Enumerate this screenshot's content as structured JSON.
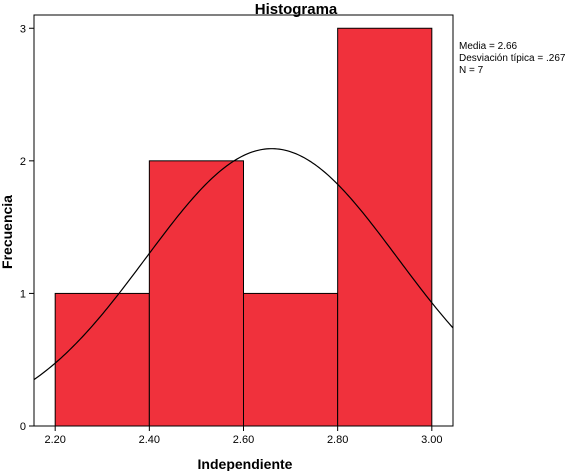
{
  "chart_data": {
    "type": "bar",
    "title": "Histograma",
    "xlabel": "Independiente",
    "ylabel": "Frecuencia",
    "bins": [
      {
        "from": 2.2,
        "to": 2.4,
        "count": 1
      },
      {
        "from": 2.4,
        "to": 2.6,
        "count": 2
      },
      {
        "from": 2.6,
        "to": 2.8,
        "count": 1
      },
      {
        "from": 2.8,
        "to": 3.0,
        "count": 3
      }
    ],
    "xticks": [
      "2.20",
      "2.40",
      "2.60",
      "2.80",
      "3.00"
    ],
    "yticks": [
      "0",
      "1",
      "2",
      "3"
    ],
    "xlim": [
      2.155,
      3.045
    ],
    "ylim": [
      0,
      3.1
    ],
    "normal_curve": {
      "mean": 2.66,
      "sd": 0.267,
      "n": 7,
      "bin_width": 0.2
    },
    "stats": {
      "mean_label": "Media = 2.66",
      "sd_label": "Desviación típica = .267",
      "n_label": "N = 7"
    },
    "bar_color": "#f0313c",
    "grid": false
  }
}
